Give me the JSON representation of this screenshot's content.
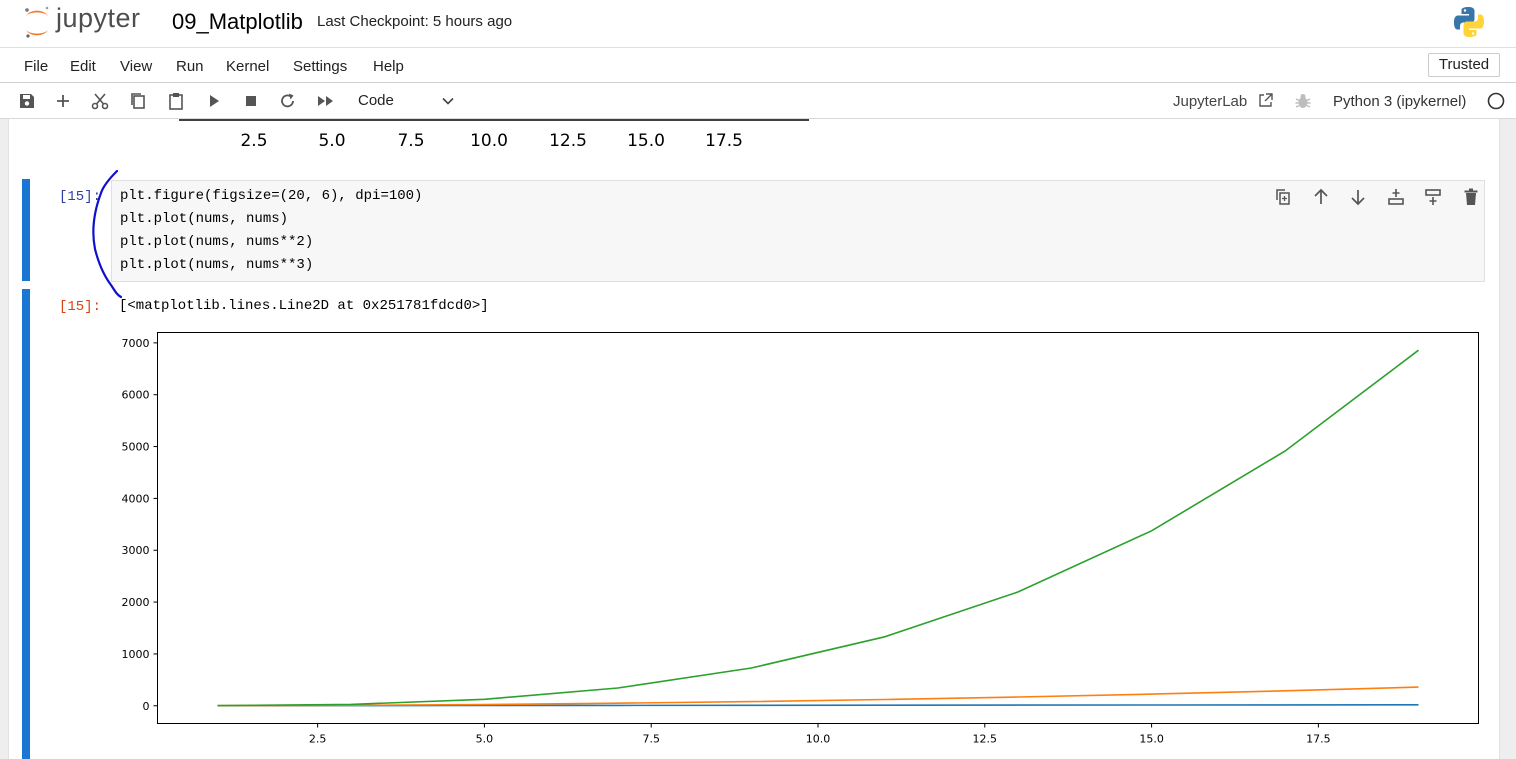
{
  "header": {
    "logo_text": "jupyter",
    "notebook_name": "09_Matplotlib",
    "checkpoint": "Last Checkpoint: 5 hours ago"
  },
  "menubar": {
    "items": [
      "File",
      "Edit",
      "View",
      "Run",
      "Kernel",
      "Settings",
      "Help"
    ],
    "trusted": "Trusted"
  },
  "toolbar": {
    "icons": [
      "save-icon",
      "add-icon",
      "cut-icon",
      "copy-icon",
      "paste-icon",
      "run-icon",
      "stop-icon",
      "restart-icon",
      "fast-forward-icon"
    ],
    "cell_type": "Code",
    "jupyterlab": "JupyterLab",
    "kernel": "Python 3 (ipykernel)"
  },
  "previous_output": {
    "tick_labels": [
      "2.5",
      "5.0",
      "7.5",
      "10.0",
      "12.5",
      "15.0",
      "17.5"
    ]
  },
  "cell": {
    "in_prompt": "[15]:",
    "out_prompt": "[15]:",
    "code": [
      "plt.figure(figsize=(20, 6), dpi=100)",
      "plt.plot(nums, nums)",
      "plt.plot(nums, nums**2)",
      "plt.plot(nums, nums**3)"
    ],
    "output_text": "[<matplotlib.lines.Line2D at 0x251781fdcd0>]"
  },
  "chart_data": {
    "type": "line",
    "x": [
      1,
      3,
      5,
      7,
      9,
      11,
      13,
      15,
      17,
      19
    ],
    "series": [
      {
        "color": "#1f77b4",
        "values": [
          1,
          3,
          5,
          7,
          9,
          11,
          13,
          15,
          17,
          19
        ]
      },
      {
        "color": "#ff7f0e",
        "values": [
          1,
          9,
          25,
          49,
          81,
          121,
          169,
          225,
          289,
          361
        ]
      },
      {
        "color": "#2ca02c",
        "values": [
          1,
          27,
          125,
          343,
          729,
          1331,
          2197,
          3375,
          4913,
          6859
        ]
      }
    ],
    "xlim": [
      0.1,
      19.9
    ],
    "ylim": [
      -342,
      7200
    ],
    "x_ticks": [
      2.5,
      5.0,
      7.5,
      10.0,
      12.5,
      15.0,
      17.5
    ],
    "x_tick_labels": [
      "2.5",
      "5.0",
      "7.5",
      "10.0",
      "12.5",
      "15.0",
      "17.5"
    ],
    "y_ticks": [
      0,
      1000,
      2000,
      3000,
      4000,
      5000,
      6000,
      7000
    ],
    "y_tick_labels": [
      "0",
      "1000",
      "2000",
      "3000",
      "4000",
      "5000",
      "6000",
      "7000"
    ],
    "grid": false
  }
}
